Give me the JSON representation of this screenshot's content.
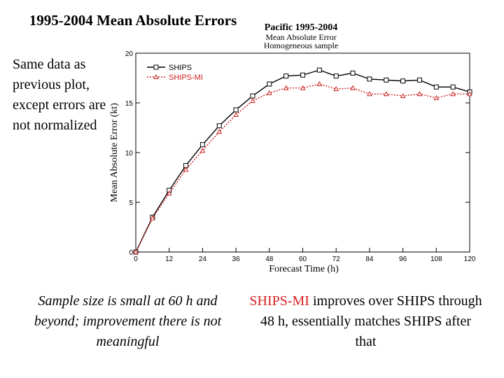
{
  "slide": {
    "title": "1995-2004 Mean Absolute Errors",
    "side_note": "Same data as previous plot, except errors are not normalized",
    "bottom_left_note": "Sample size is small at 60 h and beyond; improvement there is not meaningful",
    "bottom_right_note_highlight": "SHIPS-MI",
    "bottom_right_note_rest": " improves over SHIPS through 48 h, essentially matches SHIPS after that"
  },
  "chart_data": {
    "type": "line",
    "title": "Pacific 1995-2004",
    "subtitle_line1": "Mean Absolute Error",
    "subtitle_line2": "Homogeneous sample",
    "xlabel": "Forecast Time (h)",
    "ylabel": "Mean Absolute Error (kt)",
    "xlim": [
      0,
      120
    ],
    "ylim": [
      0,
      20
    ],
    "xticks": [
      0,
      12,
      24,
      36,
      48,
      60,
      72,
      84,
      96,
      108,
      120
    ],
    "xtick_labels": [
      "0",
      "12",
      "24",
      "36",
      "48",
      "60",
      "72",
      "84",
      "96",
      "108",
      "120"
    ],
    "yticks": [
      0,
      5,
      10,
      15,
      20
    ],
    "ytick_labels": [
      "0",
      "5",
      "10",
      "15",
      "20"
    ],
    "x": [
      0,
      6,
      12,
      18,
      24,
      30,
      36,
      42,
      48,
      54,
      60,
      66,
      72,
      78,
      84,
      90,
      96,
      102,
      108,
      114,
      120
    ],
    "series": [
      {
        "name": "SHIPS",
        "color": "#000000",
        "marker": "square",
        "values": [
          0,
          3.5,
          6.2,
          8.7,
          10.8,
          12.7,
          14.3,
          15.7,
          16.9,
          17.7,
          17.8,
          18.3,
          17.7,
          18.0,
          17.4,
          17.3,
          17.2,
          17.3,
          16.6,
          16.6,
          16.1
        ]
      },
      {
        "name": "SHIPS-MI",
        "color": "#cc2222",
        "marker": "triangle",
        "values": [
          0,
          3.4,
          5.9,
          8.3,
          10.2,
          12.1,
          13.8,
          15.2,
          16.0,
          16.5,
          16.5,
          16.9,
          16.4,
          16.5,
          15.9,
          15.9,
          15.7,
          15.9,
          15.5,
          15.9,
          15.9
        ]
      }
    ],
    "legend_position": "top-left"
  }
}
